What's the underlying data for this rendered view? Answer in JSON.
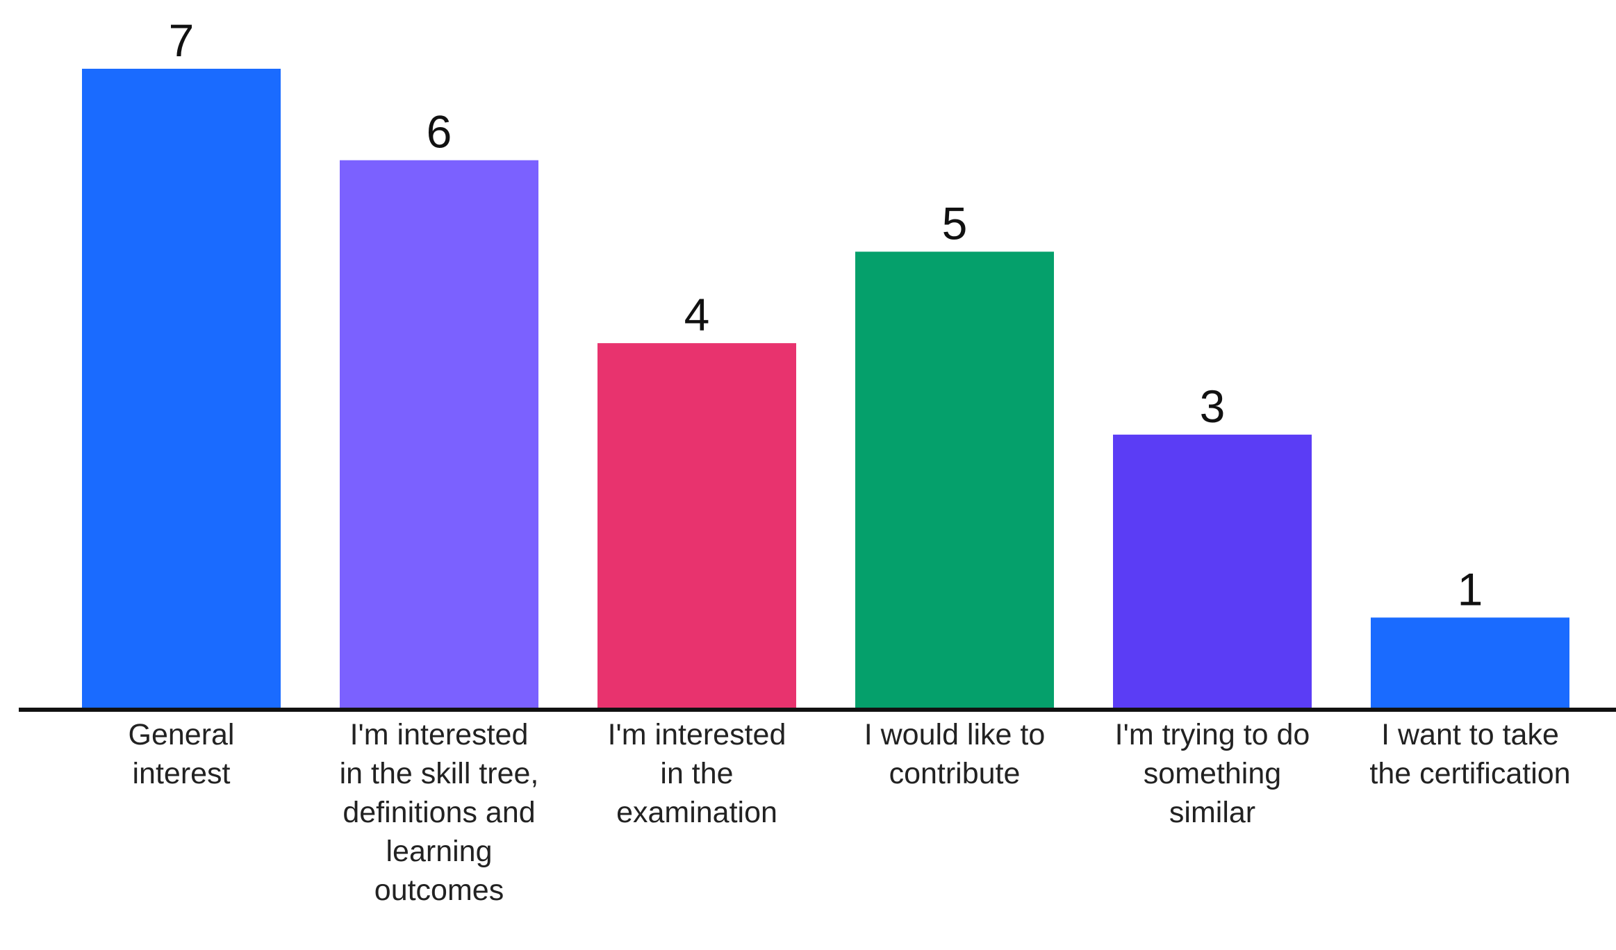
{
  "chart_data": {
    "type": "bar",
    "categories": [
      "General interest",
      "I'm interested in the skill tree, definitions and learning outcomes",
      "I'm interested in the examination",
      "I would like to contribute",
      "I'm trying to do something similar",
      "I want to take the certification"
    ],
    "values": [
      7,
      6,
      4,
      5,
      3,
      1
    ],
    "colors": [
      "#1a6bff",
      "#7b61ff",
      "#e8336e",
      "#05a06b",
      "#5b3df5",
      "#1a6bff"
    ]
  }
}
